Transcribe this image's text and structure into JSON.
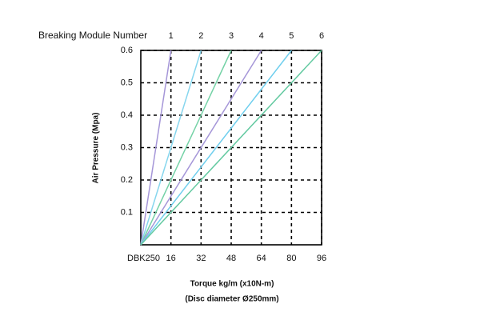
{
  "chart_data": {
    "type": "line",
    "title": "Breaking Module Number",
    "y_label": "Air Pressure (Mpa)",
    "x_label": [
      "Torque kg/m (x10N-m)",
      "(Disc diameter Ø250mm)"
    ],
    "x_origin_label": "DBK250",
    "xlim": [
      0,
      96
    ],
    "xticks": [
      16,
      32,
      48,
      64,
      80,
      96
    ],
    "ylim": [
      0,
      0.6
    ],
    "yticks": [
      0.1,
      0.2,
      0.3,
      0.4,
      0.5,
      0.6
    ],
    "grid": true,
    "series": [
      {
        "name": "1",
        "color": "#a596d8",
        "x": [
          0,
          16
        ],
        "values": [
          0,
          0.6
        ]
      },
      {
        "name": "2",
        "color": "#86d6ee",
        "x": [
          0,
          32
        ],
        "values": [
          0,
          0.6
        ]
      },
      {
        "name": "3",
        "color": "#74d2a6",
        "x": [
          0,
          48
        ],
        "values": [
          0,
          0.6
        ]
      },
      {
        "name": "4",
        "color": "#a596d8",
        "x": [
          0,
          64
        ],
        "values": [
          0,
          0.6
        ]
      },
      {
        "name": "5",
        "color": "#6fcfee",
        "x": [
          0,
          80
        ],
        "values": [
          0,
          0.6
        ]
      },
      {
        "name": "6",
        "color": "#62c9a0",
        "x": [
          0,
          96
        ],
        "values": [
          0,
          0.6
        ]
      }
    ]
  }
}
